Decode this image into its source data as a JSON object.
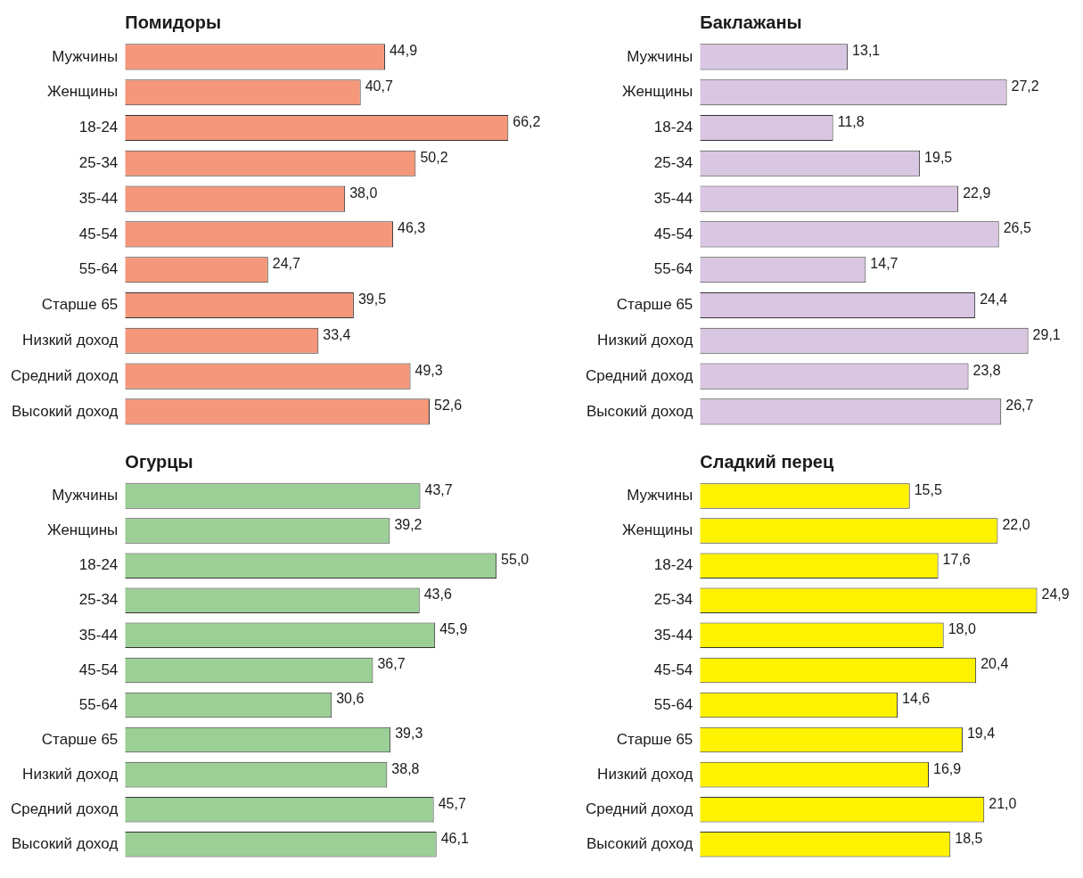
{
  "chart_data": [
    {
      "type": "bar",
      "orientation": "horizontal",
      "title": "Помидоры",
      "categories": [
        "Мужчины",
        "Женщины",
        "18-24",
        "25-34",
        "35-44",
        "45-54",
        "55-64",
        "Старше 65",
        "Низкий доход",
        "Средний доход",
        "Высокий доход"
      ],
      "values": [
        44.9,
        40.7,
        66.2,
        50.2,
        38.0,
        46.3,
        24.7,
        39.5,
        33.4,
        49.3,
        52.6
      ],
      "value_labels": [
        "44,9",
        "40,7",
        "66,2",
        "50,2",
        "38,0",
        "46,3",
        "24,7",
        "39,5",
        "33,4",
        "49,3",
        "52,6"
      ],
      "color": "#f4977a",
      "tick_labels": "y",
      "grid": false
    },
    {
      "type": "bar",
      "orientation": "horizontal",
      "title": "Баклажаны",
      "categories": [
        "Мужчины",
        "Женщины",
        "18-24",
        "25-34",
        "35-44",
        "45-54",
        "55-64",
        "Старше 65",
        "Низкий доход",
        "Средний доход",
        "Высокий доход"
      ],
      "values": [
        13.1,
        27.2,
        11.8,
        19.5,
        22.9,
        26.5,
        14.7,
        24.4,
        29.1,
        23.8,
        26.7
      ],
      "value_labels": [
        "13,1",
        "27,2",
        "11,8",
        "19,5",
        "22,9",
        "26,5",
        "14,7",
        "24,4",
        "29,1",
        "23,8",
        "26,7"
      ],
      "color": "#d9c6e2",
      "tick_labels": "y",
      "grid": false
    },
    {
      "type": "bar",
      "orientation": "horizontal",
      "title": "Огурцы",
      "categories": [
        "Мужчины",
        "Женщины",
        "18-24",
        "25-34",
        "35-44",
        "45-54",
        "55-64",
        "Старше 65",
        "Низкий доход",
        "Средний доход",
        "Высокий доход"
      ],
      "values": [
        43.7,
        39.2,
        55.0,
        43.6,
        45.9,
        36.7,
        30.6,
        39.3,
        38.8,
        45.7,
        46.1
      ],
      "value_labels": [
        "43,7",
        "39,2",
        "55,0",
        "43,6",
        "45,9",
        "36,7",
        "30,6",
        "39,3",
        "38,8",
        "45,7",
        "46,1"
      ],
      "color": "#9ccf96",
      "tick_labels": "y",
      "grid": false
    },
    {
      "type": "bar",
      "orientation": "horizontal",
      "title": "Сладкий перец",
      "categories": [
        "Мужчины",
        "Женщины",
        "18-24",
        "25-34",
        "35-44",
        "45-54",
        "55-64",
        "Старше 65",
        "Низкий доход",
        "Средний доход",
        "Высокий доход"
      ],
      "values": [
        15.5,
        22.0,
        17.6,
        24.9,
        18.0,
        20.4,
        14.6,
        19.4,
        16.9,
        21.0,
        18.5
      ],
      "value_labels": [
        "15,5",
        "22,0",
        "17,6",
        "24,9",
        "18,0",
        "20,4",
        "14,6",
        "19,4",
        "16,9",
        "21,0",
        "18,5"
      ],
      "color": "#fff200",
      "tick_labels": "y",
      "grid": false
    }
  ]
}
